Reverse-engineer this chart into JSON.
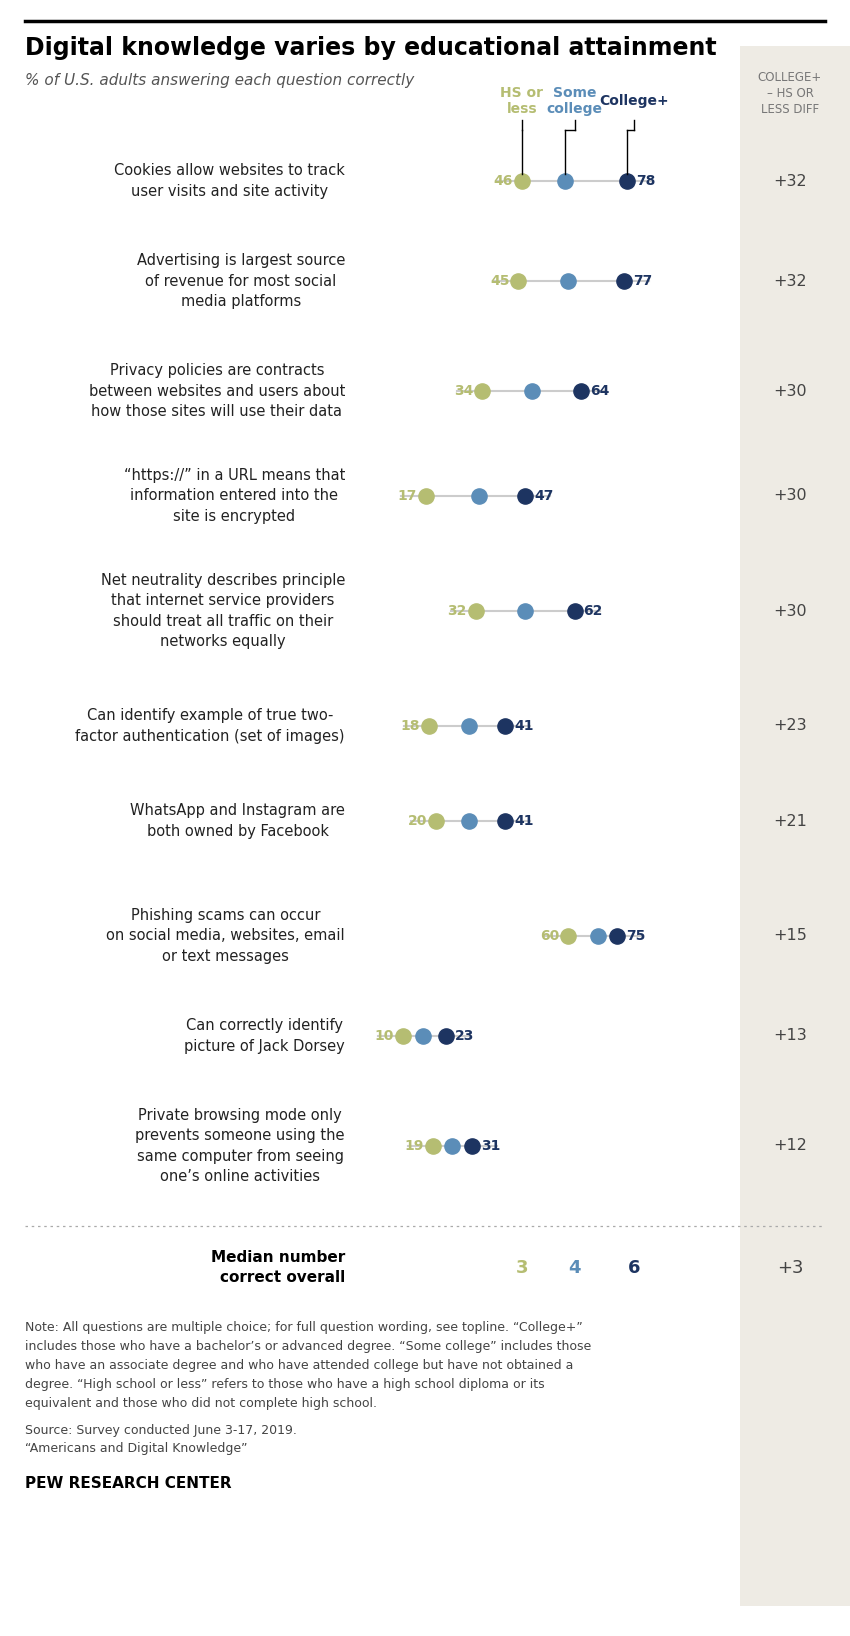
{
  "title": "Digital knowledge varies by educational attainment",
  "subtitle": "% of U.S. adults answering each question correctly",
  "questions": [
    {
      "label": "Cookies allow websites to track\nuser visits and site activity",
      "hs": 46,
      "some": 59,
      "college": 78,
      "diff": "+32"
    },
    {
      "label": "Advertising is largest source\nof revenue for most social\nmedia platforms",
      "hs": 45,
      "some": 60,
      "college": 77,
      "diff": "+32"
    },
    {
      "label": "Privacy policies are contracts\nbetween websites and users about\nhow those sites will use their data",
      "hs": 34,
      "some": 49,
      "college": 64,
      "diff": "+30"
    },
    {
      "label": "“https://” in a URL means that\ninformation entered into the\nsite is encrypted",
      "hs": 17,
      "some": 33,
      "college": 47,
      "diff": "+30"
    },
    {
      "label": "Net neutrality describes principle\nthat internet service providers\nshould treat all traffic on their\nnetworks equally",
      "hs": 32,
      "some": 47,
      "college": 62,
      "diff": "+30"
    },
    {
      "label": "Can identify example of true two-\nfactor authentication (set of images)",
      "hs": 18,
      "some": 30,
      "college": 41,
      "diff": "+23"
    },
    {
      "label": "WhatsApp and Instagram are\nboth owned by Facebook",
      "hs": 20,
      "some": 30,
      "college": 41,
      "diff": "+21"
    },
    {
      "label": "Phishing scams can occur\non social media, websites, email\nor text messages",
      "hs": 60,
      "some": 69,
      "college": 75,
      "diff": "+15"
    },
    {
      "label": "Can correctly identify\npicture of Jack Dorsey",
      "hs": 10,
      "some": 16,
      "college": 23,
      "diff": "+13"
    },
    {
      "label": "Private browsing mode only\nprevents someone using the\nsame computer from seeing\none’s online activities",
      "hs": 19,
      "some": 25,
      "college": 31,
      "diff": "+12"
    }
  ],
  "median": {
    "hs": 3,
    "some": 4,
    "college": 6,
    "diff": "+3"
  },
  "color_hs": "#b5bd72",
  "color_some": "#5b8db8",
  "color_college": "#1d3461",
  "color_line": "#cccccc",
  "color_bg_right": "#eeebe4",
  "note_line1": "Note: All questions are multiple choice; for full question wording, see topline. “College+”",
  "note_line2": "includes those who have a bachelor’s or advanced degree. “Some college” includes those",
  "note_line3": "who have an associate degree and who have attended college but have not obtained a",
  "note_line4": "degree. “High school or less” refers to those who have a high school diploma or its",
  "note_line5": "equivalent and those who did not complete high school.",
  "source_line1": "Source: Survey conducted June 3-17, 2019.",
  "source_line2": "“Americans and Digital Knowledge”",
  "footer": "PEW RESEARCH CENTER",
  "col_header_hs_line1": "HS or",
  "col_header_hs_line2": "less",
  "col_header_some_line1": "Some",
  "col_header_some_line2": "college",
  "col_header_college": "College+",
  "col_header_diff_line1": "COLLEGE+",
  "col_header_diff_line2": "– HS OR",
  "col_header_diff_line3": "LESS DIFF"
}
